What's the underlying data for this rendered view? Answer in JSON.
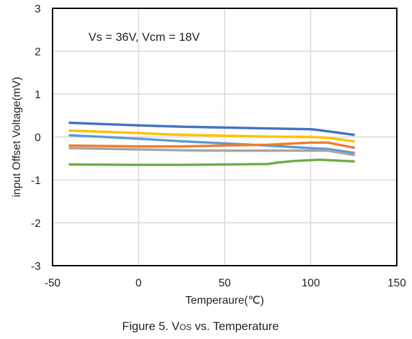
{
  "chart_data": {
    "type": "line",
    "title": "",
    "annotation": "Vs = 36V, Vcm = 18V",
    "xlabel": "Temperaure(℃)",
    "ylabel": "input Offset Voltage(mV)",
    "xlim": [
      -50,
      150
    ],
    "ylim": [
      -3,
      3
    ],
    "xticks": [
      -50,
      0,
      50,
      100,
      150
    ],
    "yticks": [
      -3,
      -2,
      -1,
      0,
      1,
      2,
      3
    ],
    "grid": true,
    "legend": "none",
    "series": [
      {
        "color": "#4472c4",
        "x": [
          -40,
          0,
          25,
          50,
          75,
          100,
          105,
          125
        ],
        "y": [
          0.33,
          0.27,
          0.24,
          0.22,
          0.2,
          0.18,
          0.16,
          0.05
        ]
      },
      {
        "color": "#ffc000",
        "x": [
          -40,
          0,
          25,
          50,
          75,
          100,
          110,
          125
        ],
        "y": [
          0.15,
          0.09,
          0.05,
          0.03,
          0.01,
          0.0,
          -0.02,
          -0.1
        ]
      },
      {
        "color": "#5b9bd5",
        "x": [
          -40,
          0,
          25,
          50,
          75,
          100,
          110,
          125
        ],
        "y": [
          0.04,
          -0.04,
          -0.1,
          -0.15,
          -0.2,
          -0.26,
          -0.28,
          -0.37
        ]
      },
      {
        "color": "#ed7d31",
        "x": [
          -40,
          0,
          25,
          50,
          75,
          100,
          110,
          125
        ],
        "y": [
          -0.2,
          -0.22,
          -0.22,
          -0.2,
          -0.18,
          -0.13,
          -0.13,
          -0.25
        ]
      },
      {
        "color": "#a5a5a5",
        "x": [
          -40,
          0,
          25,
          50,
          75,
          100,
          110,
          125
        ],
        "y": [
          -0.26,
          -0.29,
          -0.31,
          -0.32,
          -0.32,
          -0.32,
          -0.32,
          -0.42
        ]
      },
      {
        "color": "#70ad47",
        "x": [
          -40,
          0,
          25,
          50,
          75,
          80,
          90,
          105,
          125
        ],
        "y": [
          -0.64,
          -0.65,
          -0.65,
          -0.64,
          -0.63,
          -0.6,
          -0.56,
          -0.53,
          -0.57
        ]
      }
    ]
  },
  "caption": {
    "prefix": "Figure 5. V",
    "subscript": "OS",
    "suffix": " vs. Temperature"
  }
}
